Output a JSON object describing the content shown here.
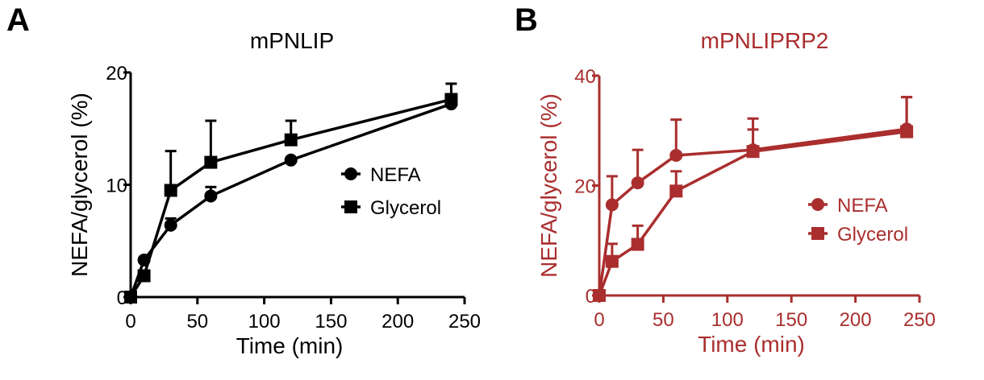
{
  "panels": [
    {
      "letter": "A",
      "chart_data": {
        "type": "line",
        "title": "mPNLIP",
        "xlabel": "Time (min)",
        "ylabel": "NEFA/glycerol (%)",
        "xlim": [
          0,
          250
        ],
        "ylim": [
          0,
          20
        ],
        "xticks": [
          0,
          50,
          100,
          150,
          200,
          250
        ],
        "yticks": [
          0,
          10,
          20
        ],
        "x": [
          0,
          10,
          30,
          60,
          120,
          240
        ],
        "series": [
          {
            "name": "NEFA",
            "marker": "circle",
            "values": [
              0,
              3.3,
              6.4,
              9.0,
              12.2,
              17.2
            ],
            "error": [
              0,
              0,
              0.6,
              0.8,
              0,
              0
            ]
          },
          {
            "name": "Glycerol",
            "marker": "square",
            "values": [
              0,
              1.9,
              9.5,
              12.0,
              14.0,
              17.6
            ],
            "error": [
              0,
              0,
              3.5,
              3.7,
              1.7,
              1.4
            ]
          }
        ],
        "legend": "right",
        "grid": false,
        "color": "#000000"
      }
    },
    {
      "letter": "B",
      "chart_data": {
        "type": "line",
        "title": "mPNLIPRP2",
        "xlabel": "Time (min)",
        "ylabel": "NEFA/glycerol (%)",
        "xlim": [
          0,
          250
        ],
        "ylim": [
          0,
          40
        ],
        "xticks": [
          0,
          50,
          100,
          150,
          200,
          250
        ],
        "yticks": [
          0,
          20,
          40
        ],
        "x": [
          0,
          10,
          30,
          60,
          120,
          240
        ],
        "series": [
          {
            "name": "NEFA",
            "marker": "circle",
            "values": [
              0,
              16.5,
              20.5,
              25.5,
              26.5,
              30.3
            ],
            "error": [
              0,
              5.2,
              6.0,
              6.5,
              3.7,
              5.8
            ]
          },
          {
            "name": "Glycerol",
            "marker": "square",
            "values": [
              0,
              6.2,
              9.3,
              19.0,
              26.2,
              29.8
            ],
            "error": [
              0,
              3.2,
              3.4,
              3.6,
              6.0,
              6.3
            ]
          }
        ],
        "legend": "right",
        "grid": false,
        "color": "#aa2e2e"
      }
    }
  ]
}
